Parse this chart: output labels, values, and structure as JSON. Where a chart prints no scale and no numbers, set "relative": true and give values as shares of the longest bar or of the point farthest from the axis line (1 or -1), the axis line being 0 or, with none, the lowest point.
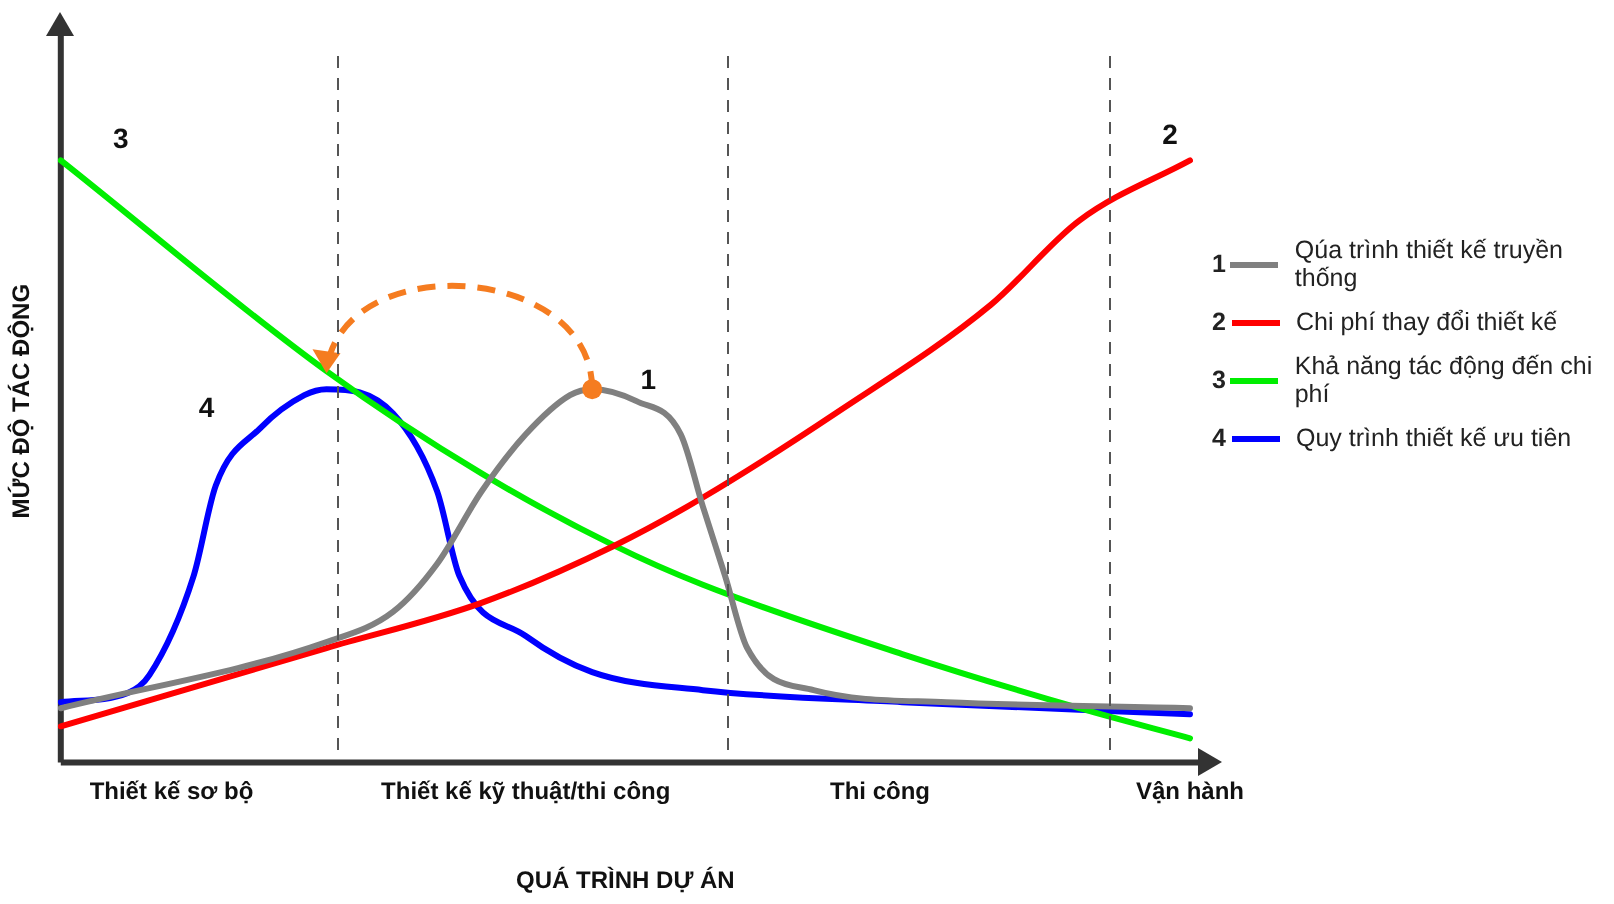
{
  "chart_data": {
    "type": "line",
    "relative": true,
    "xlabel": "QUÁ TRÌNH DỰ ÁN",
    "ylabel": "MỨC ĐỘ TÁC ĐỘNG",
    "categories": [
      null,
      null,
      null,
      null,
      null,
      "Thiết kế sơ bộ",
      null,
      null,
      null,
      null,
      null,
      null,
      null,
      null,
      null,
      null,
      null,
      null,
      null,
      null,
      null,
      "Thiết kế kỹ thuật/thi công",
      null,
      null,
      null,
      null,
      null,
      null,
      null,
      null,
      null,
      null,
      null,
      null,
      null,
      null,
      null,
      "Thi công",
      null,
      null,
      null,
      null,
      null,
      null,
      null,
      null,
      null,
      null,
      null,
      null,
      null,
      "Vận hành"
    ],
    "series": [
      {
        "name": "Qúa trình thiết kế truyền thống",
        "color": "#808080",
        "values": [
          0.09,
          null,
          null,
          null,
          null,
          null,
          null,
          null,
          null,
          null,
          null,
          null,
          0.2,
          null,
          null,
          0.25,
          null,
          0.33,
          null,
          0.45,
          null,
          0.545,
          null,
          0.61,
          0.62,
          null,
          0.6,
          null,
          0.545,
          0.425,
          0.31,
          0.19,
          null,
          null,
          0.12,
          null,
          null,
          null,
          null,
          null,
          0.1,
          null,
          null,
          null,
          null,
          null,
          null,
          null,
          null,
          null,
          null,
          0.09
        ]
      },
      {
        "name": "Chi phí thay đổi thiết kế",
        "color": "#ff0000",
        "values": [
          0.06,
          null,
          null,
          null,
          null,
          null,
          null,
          null,
          null,
          null,
          null,
          null,
          0.19,
          null,
          null,
          null,
          null,
          null,
          null,
          0.265,
          null,
          null,
          null,
          null,
          null,
          0.36,
          null,
          null,
          null,
          0.44,
          null,
          null,
          null,
          null,
          null,
          0.58,
          null,
          null,
          null,
          null,
          null,
          null,
          0.76,
          null,
          null,
          null,
          0.9,
          null,
          null,
          null,
          null,
          1.0
        ]
      },
      {
        "name": "Khả năng tác động đến chi phí",
        "color": "#00ee00",
        "values": [
          1.0,
          null,
          null,
          null,
          null,
          null,
          null,
          null,
          null,
          null,
          null,
          null,
          0.65,
          null,
          null,
          null,
          null,
          null,
          null,
          0.48,
          null,
          null,
          null,
          null,
          null,
          0.36,
          null,
          null,
          null,
          0.295,
          null,
          null,
          null,
          null,
          null,
          null,
          null,
          null,
          0.18,
          null,
          null,
          null,
          null,
          null,
          null,
          null,
          0.09,
          null,
          null,
          null,
          null,
          0.04
        ]
      },
      {
        "name": "Quy trình thiết kế ưu tiên",
        "color": "#0000ff",
        "values": [
          0.1,
          null,
          null,
          0.115,
          0.145,
          null,
          0.31,
          0.46,
          null,
          0.555,
          null,
          0.61,
          0.62,
          null,
          null,
          0.58,
          null,
          0.45,
          0.31,
          null,
          null,
          0.21,
          null,
          null,
          0.15,
          null,
          null,
          null,
          null,
          0.12,
          null,
          null,
          null,
          null,
          null,
          null,
          null,
          null,
          0.1,
          null,
          null,
          null,
          null,
          null,
          null,
          null,
          null,
          null,
          null,
          null,
          null,
          0.08
        ]
      }
    ],
    "annotations": [
      "1",
      "2",
      "3",
      "4"
    ],
    "legend": "right",
    "line_style": "solid",
    "marker": "none",
    "grid": false
  }
}
